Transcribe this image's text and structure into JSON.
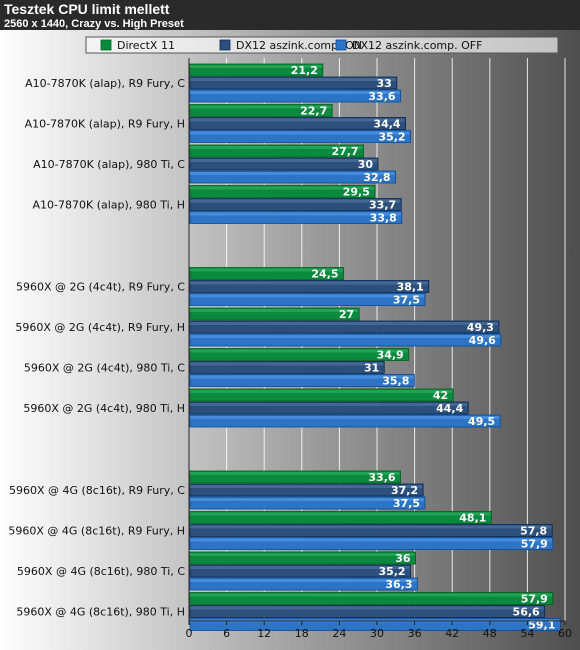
{
  "chart_data": {
    "type": "bar",
    "orientation": "horizontal",
    "title": "Tesztek CPU limit mellett",
    "subtitle": "2560 x 1440, Crazy vs. High Preset",
    "xlim": [
      0,
      60
    ],
    "xticks": [
      0,
      6,
      12,
      18,
      24,
      30,
      36,
      42,
      48,
      54,
      60
    ],
    "grid": true,
    "legend_position": "top",
    "groups": [
      [
        "A10-7870K (alap), R9 Fury, C",
        "A10-7870K (alap), R9 Fury, H",
        "A10-7870K (alap), 980 Ti, C",
        "A10-7870K (alap), 980 Ti, H"
      ],
      [
        "5960X @ 2G (4c4t), R9 Fury, C",
        "5960X @ 2G (4c4t), R9 Fury, H",
        "5960X @ 2G (4c4t), 980 Ti, C",
        "5960X @ 2G (4c4t), 980 Ti, H"
      ],
      [
        "5960X @ 4G (8c16t), R9 Fury, C",
        "5960X @ 4G (8c16t), R9 Fury, H",
        "5960X @ 4G (8c16t), 980 Ti, C",
        "5960X @ 4G (8c16t), 980 Ti, H"
      ]
    ],
    "series": [
      {
        "name": "DirectX 11",
        "color": "#0a8a3e",
        "values": [
          21.2,
          22.7,
          27.7,
          29.5,
          24.5,
          27,
          34.9,
          42,
          33.6,
          48.1,
          36,
          57.9
        ],
        "labels": [
          "21,2",
          "22,7",
          "27,7",
          "29,5",
          "24,5",
          "27",
          "34,9",
          "42",
          "33,6",
          "48,1",
          "36",
          "57,9"
        ]
      },
      {
        "name": "DX12 aszink.comp. ON",
        "color": "#2d4f7c",
        "values": [
          33,
          34.4,
          30,
          33.7,
          38.1,
          49.3,
          31,
          44.4,
          37.2,
          57.8,
          35.2,
          56.6
        ],
        "labels": [
          "33",
          "34,4",
          "30",
          "33,7",
          "38,1",
          "49,3",
          "31",
          "44,4",
          "37,2",
          "57,8",
          "35,2",
          "56,6"
        ]
      },
      {
        "name": "DX12 aszink.comp. OFF",
        "color": "#2e74c4",
        "values": [
          33.6,
          35.2,
          32.8,
          33.8,
          37.5,
          49.6,
          35.8,
          49.5,
          37.5,
          57.9,
          36.3,
          59.1
        ],
        "labels": [
          "33,6",
          "35,2",
          "32,8",
          "33,8",
          "37,5",
          "49,6",
          "35,8",
          "49,5",
          "37,5",
          "57,9",
          "36,3",
          "59,1"
        ]
      }
    ]
  }
}
